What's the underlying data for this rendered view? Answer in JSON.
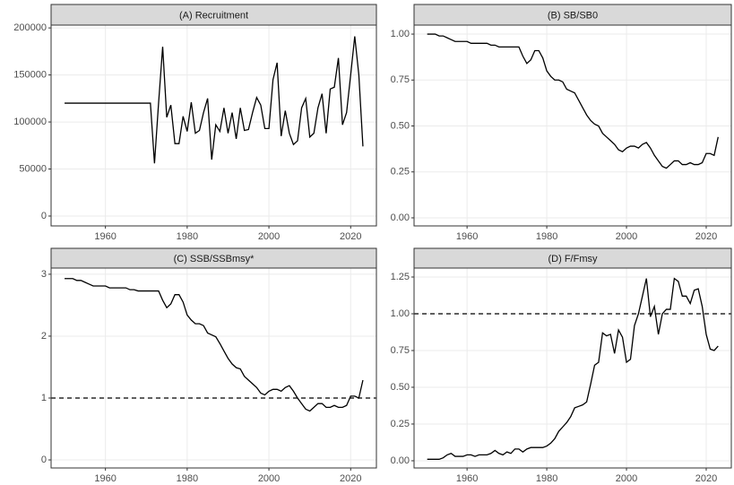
{
  "chart_data": [
    {
      "type": "line",
      "title": "(A) Recruitment",
      "color": "#000000",
      "grid": true,
      "x": [
        1950,
        1951,
        1952,
        1953,
        1954,
        1955,
        1956,
        1957,
        1958,
        1959,
        1960,
        1961,
        1962,
        1963,
        1964,
        1965,
        1966,
        1967,
        1968,
        1969,
        1970,
        1971,
        1972,
        1973,
        1974,
        1975,
        1976,
        1977,
        1978,
        1979,
        1980,
        1981,
        1982,
        1983,
        1984,
        1985,
        1986,
        1987,
        1988,
        1989,
        1990,
        1991,
        1992,
        1993,
        1994,
        1995,
        1996,
        1997,
        1998,
        1999,
        2000,
        2001,
        2002,
        2003,
        2004,
        2005,
        2006,
        2007,
        2008,
        2009,
        2010,
        2011,
        2012,
        2013,
        2014,
        2015,
        2016,
        2017,
        2018,
        2019,
        2020,
        2021,
        2022,
        2023
      ],
      "values": [
        120000,
        120000,
        120000,
        120000,
        120000,
        120000,
        120000,
        120000,
        120000,
        120000,
        120000,
        120000,
        120000,
        120000,
        120000,
        120000,
        120000,
        120000,
        120000,
        120000,
        120000,
        120000,
        56000,
        120000,
        180000,
        105000,
        118000,
        77000,
        77000,
        106000,
        90000,
        121000,
        88000,
        91000,
        110000,
        125000,
        60000,
        97000,
        90000,
        115000,
        88000,
        110000,
        82000,
        115000,
        91000,
        92000,
        110000,
        126000,
        118000,
        93000,
        93000,
        145000,
        163000,
        85000,
        112000,
        88000,
        76000,
        80000,
        115000,
        125000,
        84000,
        88000,
        115000,
        130000,
        88000,
        135000,
        137000,
        168000,
        97000,
        110000,
        150000,
        191000,
        150000,
        74000
      ],
      "xlim": [
        1946.7,
        2026.3
      ],
      "xticks": [
        1960,
        1980,
        2000,
        2020
      ],
      "ylim": [
        -10500,
        203000
      ],
      "yticks": [
        0,
        50000,
        100000,
        150000,
        200000
      ]
    },
    {
      "type": "line",
      "title": "(B) SB/SB0",
      "color": "#000000",
      "grid": true,
      "x": [
        1950,
        1951,
        1952,
        1953,
        1954,
        1955,
        1956,
        1957,
        1958,
        1959,
        1960,
        1961,
        1962,
        1963,
        1964,
        1965,
        1966,
        1967,
        1968,
        1969,
        1970,
        1971,
        1972,
        1973,
        1974,
        1975,
        1976,
        1977,
        1978,
        1979,
        1980,
        1981,
        1982,
        1983,
        1984,
        1985,
        1986,
        1987,
        1988,
        1989,
        1990,
        1991,
        1992,
        1993,
        1994,
        1995,
        1996,
        1997,
        1998,
        1999,
        2000,
        2001,
        2002,
        2003,
        2004,
        2005,
        2006,
        2007,
        2008,
        2009,
        2010,
        2011,
        2012,
        2013,
        2014,
        2015,
        2016,
        2017,
        2018,
        2019,
        2020,
        2021,
        2022,
        2023
      ],
      "values": [
        1.0,
        1.0,
        1.0,
        0.99,
        0.99,
        0.98,
        0.97,
        0.96,
        0.96,
        0.96,
        0.96,
        0.95,
        0.95,
        0.95,
        0.95,
        0.95,
        0.94,
        0.94,
        0.93,
        0.93,
        0.93,
        0.93,
        0.93,
        0.93,
        0.88,
        0.84,
        0.86,
        0.91,
        0.91,
        0.87,
        0.8,
        0.77,
        0.75,
        0.75,
        0.74,
        0.7,
        0.69,
        0.68,
        0.64,
        0.6,
        0.56,
        0.53,
        0.51,
        0.5,
        0.46,
        0.44,
        0.42,
        0.4,
        0.37,
        0.36,
        0.38,
        0.39,
        0.39,
        0.38,
        0.4,
        0.41,
        0.38,
        0.34,
        0.31,
        0.28,
        0.27,
        0.29,
        0.31,
        0.31,
        0.29,
        0.29,
        0.3,
        0.29,
        0.29,
        0.3,
        0.35,
        0.35,
        0.34,
        0.44
      ],
      "xlim": [
        1946.7,
        2026.3
      ],
      "xticks": [
        1960,
        1980,
        2000,
        2020
      ],
      "ylim": [
        -0.044,
        1.049
      ],
      "yticks": [
        {
          "value": 0,
          "label": "0.00"
        },
        {
          "value": 0.25,
          "label": "0.25"
        },
        {
          "value": 0.5,
          "label": "0.50"
        },
        {
          "value": 0.75,
          "label": "0.75"
        },
        {
          "value": 1,
          "label": "1.00"
        }
      ]
    },
    {
      "type": "line",
      "title": "(C) SSB/SSBmsy*",
      "color": "#000000",
      "grid": true,
      "hline": {
        "value": 1,
        "style": "dashed"
      },
      "x": [
        1950,
        1951,
        1952,
        1953,
        1954,
        1955,
        1956,
        1957,
        1958,
        1959,
        1960,
        1961,
        1962,
        1963,
        1964,
        1965,
        1966,
        1967,
        1968,
        1969,
        1970,
        1971,
        1972,
        1973,
        1974,
        1975,
        1976,
        1977,
        1978,
        1979,
        1980,
        1981,
        1982,
        1983,
        1984,
        1985,
        1986,
        1987,
        1988,
        1989,
        1990,
        1991,
        1992,
        1993,
        1994,
        1995,
        1996,
        1997,
        1998,
        1999,
        2000,
        2001,
        2002,
        2003,
        2004,
        2005,
        2006,
        2007,
        2008,
        2009,
        2010,
        2011,
        2012,
        2013,
        2014,
        2015,
        2016,
        2017,
        2018,
        2019,
        2020,
        2021,
        2022,
        2023
      ],
      "values": [
        2.93,
        2.93,
        2.93,
        2.9,
        2.9,
        2.87,
        2.84,
        2.81,
        2.81,
        2.81,
        2.81,
        2.78,
        2.78,
        2.78,
        2.78,
        2.78,
        2.75,
        2.75,
        2.73,
        2.73,
        2.73,
        2.73,
        2.73,
        2.73,
        2.58,
        2.46,
        2.52,
        2.67,
        2.67,
        2.55,
        2.34,
        2.26,
        2.2,
        2.2,
        2.17,
        2.05,
        2.02,
        1.99,
        1.88,
        1.76,
        1.64,
        1.55,
        1.49,
        1.47,
        1.35,
        1.29,
        1.23,
        1.17,
        1.08,
        1.05,
        1.11,
        1.14,
        1.14,
        1.11,
        1.17,
        1.2,
        1.11,
        1.0,
        0.91,
        0.82,
        0.79,
        0.85,
        0.91,
        0.91,
        0.85,
        0.85,
        0.88,
        0.85,
        0.85,
        0.88,
        1.03,
        1.03,
        1.0,
        1.29
      ],
      "xlim": [
        1946.7,
        2026.3
      ],
      "xticks": [
        1960,
        1980,
        2000,
        2020
      ],
      "ylim": [
        -0.13,
        3.1
      ],
      "yticks": [
        0,
        1,
        2,
        3
      ]
    },
    {
      "type": "line",
      "title": "(D) F/Fmsy",
      "color": "#000000",
      "grid": true,
      "hline": {
        "value": 1,
        "style": "dashed"
      },
      "x": [
        1950,
        1951,
        1952,
        1953,
        1954,
        1955,
        1956,
        1957,
        1958,
        1959,
        1960,
        1961,
        1962,
        1963,
        1964,
        1965,
        1966,
        1967,
        1968,
        1969,
        1970,
        1971,
        1972,
        1973,
        1974,
        1975,
        1976,
        1977,
        1978,
        1979,
        1980,
        1981,
        1982,
        1983,
        1984,
        1985,
        1986,
        1987,
        1988,
        1989,
        1990,
        1991,
        1992,
        1993,
        1994,
        1995,
        1996,
        1997,
        1998,
        1999,
        2000,
        2001,
        2002,
        2003,
        2004,
        2005,
        2006,
        2007,
        2008,
        2009,
        2010,
        2011,
        2012,
        2013,
        2014,
        2015,
        2016,
        2017,
        2018,
        2019,
        2020,
        2021,
        2022,
        2023
      ],
      "values": [
        0.01,
        0.01,
        0.01,
        0.01,
        0.02,
        0.04,
        0.05,
        0.03,
        0.03,
        0.03,
        0.04,
        0.04,
        0.03,
        0.04,
        0.04,
        0.04,
        0.05,
        0.07,
        0.05,
        0.04,
        0.06,
        0.05,
        0.08,
        0.08,
        0.06,
        0.08,
        0.09,
        0.09,
        0.09,
        0.09,
        0.1,
        0.12,
        0.15,
        0.2,
        0.23,
        0.26,
        0.3,
        0.36,
        0.37,
        0.38,
        0.4,
        0.52,
        0.65,
        0.67,
        0.87,
        0.85,
        0.86,
        0.73,
        0.89,
        0.84,
        0.67,
        0.69,
        0.92,
        1.0,
        1.12,
        1.24,
        0.98,
        1.05,
        0.86,
        1.0,
        1.03,
        1.03,
        1.24,
        1.22,
        1.12,
        1.12,
        1.07,
        1.16,
        1.17,
        1.05,
        0.86,
        0.76,
        0.75,
        0.78
      ],
      "xlim": [
        1946.7,
        2026.3
      ],
      "xticks": [
        1960,
        1980,
        2000,
        2020
      ],
      "ylim": [
        -0.049,
        1.311
      ],
      "yticks": [
        {
          "value": 0,
          "label": "0.00"
        },
        {
          "value": 0.25,
          "label": "0.25"
        },
        {
          "value": 0.5,
          "label": "0.50"
        },
        {
          "value": 0.75,
          "label": "0.75"
        },
        {
          "value": 1,
          "label": "1.00"
        },
        {
          "value": 1.25,
          "label": "1.25"
        }
      ]
    }
  ]
}
